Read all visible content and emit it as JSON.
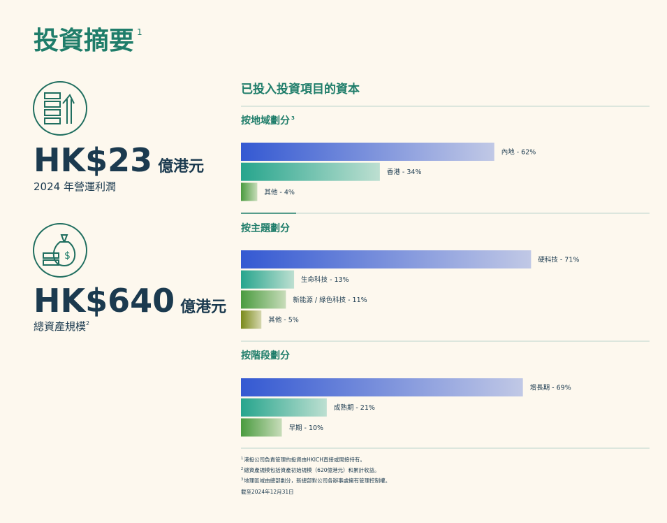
{
  "header": {
    "title": "投資摘要",
    "title_note": "1"
  },
  "stats": [
    {
      "value": "HK$23",
      "unit": "億港元",
      "label": "2024 年營運利潤"
    },
    {
      "value": "HK$640",
      "unit": "億港元",
      "label": "總資產規模",
      "label_note": "2"
    }
  ],
  "section_title": "已投入投資項目的資本",
  "chart_data": [
    {
      "type": "bar",
      "orientation": "horizontal",
      "title": "按地域劃分",
      "title_note": "3",
      "values": [
        62,
        34,
        4
      ],
      "value_labels": [
        "內地 - 62%",
        "香港 - 34%",
        "其他 - 4%"
      ],
      "colors": [
        "#3459d2",
        "#27a58d",
        "#4a9b3f"
      ],
      "xlim": [
        0,
        100
      ]
    },
    {
      "type": "bar",
      "orientation": "horizontal",
      "title": "按主題劃分",
      "values": [
        71,
        13,
        11,
        5
      ],
      "value_labels": [
        "硬科技 - 71%",
        "生命科技 - 13%",
        "新能源 / 綠色科技 - 11%",
        "其他 - 5%"
      ],
      "colors": [
        "#3459d2",
        "#27a58d",
        "#4a9b3f",
        "#7a8a1a"
      ],
      "xlim": [
        0,
        100
      ]
    },
    {
      "type": "bar",
      "orientation": "horizontal",
      "title": "按階段劃分",
      "values": [
        69,
        21,
        10
      ],
      "value_labels": [
        "增長期 - 69%",
        "成熟期 - 21%",
        "早期 - 10%"
      ],
      "colors": [
        "#3459d2",
        "#27a58d",
        "#4a9b3f"
      ],
      "xlim": [
        0,
        100
      ]
    }
  ],
  "footnotes": [
    {
      "note": "1",
      "text": "港投公司負責管理的投資由HKICH直接或間接持有。"
    },
    {
      "note": "2",
      "text": "總資產規模包括資產初始規模（620億港元）和累計收益。"
    },
    {
      "note": "3",
      "text": "地理區域由總部劃分，新總部對公司各辦事處擁有管理控制權。"
    }
  ],
  "as_of": "截至2024年12月31日"
}
